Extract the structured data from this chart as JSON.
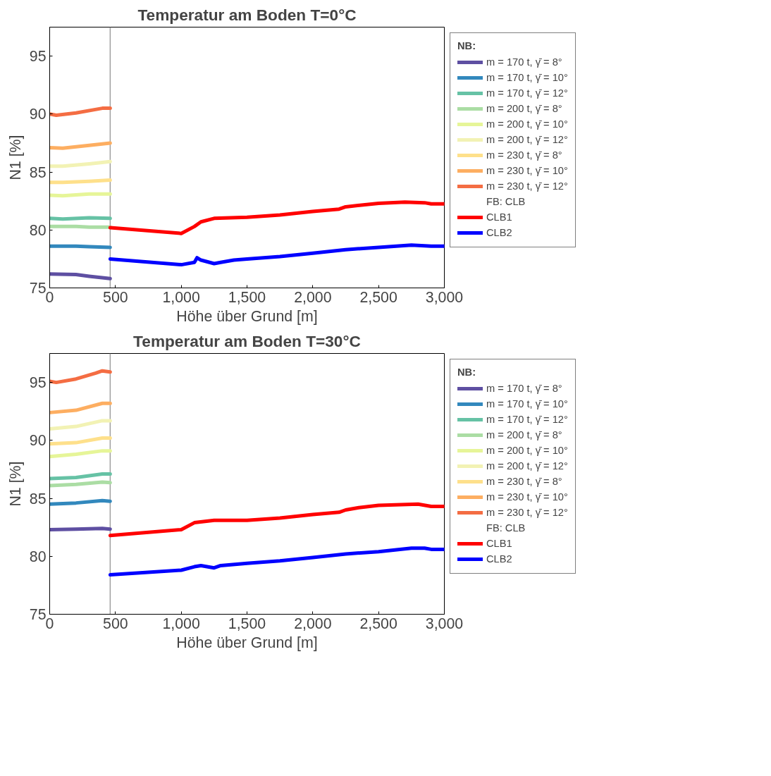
{
  "chart_data": [
    {
      "type": "line",
      "title": "Temperatur am Boden T=0°C",
      "xlabel": "Höhe über Grund [m]",
      "ylabel": "N1 [%]",
      "legend_title": "NB:",
      "annotations": [
        "FB: CLB"
      ],
      "legend": "right",
      "grid": false,
      "xlim": [
        0,
        3000
      ],
      "ylim": [
        75,
        97.5
      ],
      "xticks": [
        0,
        500,
        {
          "value": 1000,
          "label": "1,000"
        },
        {
          "value": 1500,
          "label": "1,500"
        },
        {
          "value": 2000,
          "label": "2,000"
        },
        {
          "value": 2500,
          "label": "2,500"
        },
        {
          "value": 3000,
          "label": "3,000"
        }
      ],
      "yticks": [
        75,
        80,
        85,
        90,
        95
      ],
      "ref_lines": [
        {
          "axis": "x",
          "value": 460,
          "label": null,
          "color": "#a0a0a0"
        }
      ],
      "series": [
        {
          "name": "m = 170 t, γ̄ = 8°",
          "color": "#5e4fa2",
          "x": [
            0,
            200,
            300,
            460
          ],
          "values": [
            76.2,
            76.15,
            76.0,
            75.8
          ]
        },
        {
          "name": "m = 170 t, γ̄ = 10°",
          "color": "#3288bd",
          "x": [
            0,
            200,
            300,
            460
          ],
          "values": [
            78.6,
            78.6,
            78.55,
            78.5
          ]
        },
        {
          "name": "m = 170 t, γ̄ = 12°",
          "color": "#66c2a5",
          "x": [
            0,
            100,
            300,
            460
          ],
          "values": [
            81.0,
            80.95,
            81.05,
            81.0
          ]
        },
        {
          "name": "m = 200 t, γ̄ = 8°",
          "color": "#abdda4",
          "x": [
            0,
            200,
            300,
            460
          ],
          "values": [
            80.3,
            80.3,
            80.25,
            80.25
          ]
        },
        {
          "name": "m = 200 t, γ̄ = 10°",
          "color": "#e6f598",
          "x": [
            0,
            100,
            300,
            460
          ],
          "values": [
            83.0,
            82.95,
            83.1,
            83.1
          ]
        },
        {
          "name": "m = 200 t, γ̄ = 12°",
          "color": "#f2f2b4",
          "x": [
            0,
            100,
            300,
            460
          ],
          "values": [
            85.5,
            85.5,
            85.7,
            85.9
          ]
        },
        {
          "name": "m = 230 t, γ̄ = 8°",
          "color": "#fee08b",
          "x": [
            0,
            100,
            300,
            460
          ],
          "values": [
            84.1,
            84.1,
            84.2,
            84.3
          ]
        },
        {
          "name": "m = 230 t, γ̄ = 10°",
          "color": "#fdae61",
          "x": [
            0,
            100,
            300,
            460
          ],
          "values": [
            87.1,
            87.05,
            87.3,
            87.5
          ]
        },
        {
          "name": "m = 230 t, γ̄ = 12°",
          "color": "#f46d43",
          "x": [
            0,
            50,
            200,
            400,
            460
          ],
          "values": [
            90.0,
            89.9,
            90.1,
            90.5,
            90.5
          ]
        },
        {
          "name": "CLB1",
          "color": "#ff0000",
          "x": [
            460,
            1000,
            1100,
            1150,
            1250,
            1500,
            1750,
            2000,
            2200,
            2250,
            2500,
            2700,
            2850,
            2900,
            3000
          ],
          "values": [
            80.2,
            79.7,
            80.3,
            80.7,
            81.0,
            81.1,
            81.3,
            81.6,
            81.8,
            82.0,
            82.3,
            82.4,
            82.35,
            82.25,
            82.25
          ]
        },
        {
          "name": "CLB2",
          "color": "#0000ff",
          "x": [
            460,
            1000,
            1100,
            1120,
            1150,
            1250,
            1300,
            1400,
            1500,
            1750,
            2000,
            2250,
            2500,
            2750,
            2900,
            3000
          ],
          "values": [
            77.5,
            77.0,
            77.2,
            77.6,
            77.4,
            77.1,
            77.2,
            77.4,
            77.5,
            77.7,
            78.0,
            78.3,
            78.5,
            78.7,
            78.6,
            78.6
          ]
        }
      ]
    },
    {
      "type": "line",
      "title": "Temperatur am Boden T=30°C",
      "xlabel": "Höhe über Grund [m]",
      "ylabel": "N1 [%]",
      "legend_title": "NB:",
      "annotations": [
        "FB: CLB"
      ],
      "legend": "right",
      "grid": false,
      "xlim": [
        0,
        3000
      ],
      "ylim": [
        75,
        97.5
      ],
      "xticks": [
        0,
        500,
        {
          "value": 1000,
          "label": "1,000"
        },
        {
          "value": 1500,
          "label": "1,500"
        },
        {
          "value": 2000,
          "label": "2,000"
        },
        {
          "value": 2500,
          "label": "2,500"
        },
        {
          "value": 3000,
          "label": "3,000"
        }
      ],
      "yticks": [
        75,
        80,
        85,
        90,
        95
      ],
      "ref_lines": [
        {
          "axis": "x",
          "value": 460,
          "label": null,
          "color": "#a0a0a0"
        }
      ],
      "series": [
        {
          "name": "m = 170 t, γ̄ = 8°",
          "color": "#5e4fa2",
          "x": [
            0,
            200,
            400,
            460
          ],
          "values": [
            82.3,
            82.35,
            82.4,
            82.35
          ]
        },
        {
          "name": "m = 170 t, γ̄ = 10°",
          "color": "#3288bd",
          "x": [
            0,
            200,
            400,
            460
          ],
          "values": [
            84.5,
            84.6,
            84.8,
            84.75
          ]
        },
        {
          "name": "m = 170 t, γ̄ = 12°",
          "color": "#66c2a5",
          "x": [
            0,
            200,
            400,
            460
          ],
          "values": [
            86.7,
            86.8,
            87.1,
            87.1
          ]
        },
        {
          "name": "m = 200 t, γ̄ = 8°",
          "color": "#abdda4",
          "x": [
            0,
            200,
            400,
            460
          ],
          "values": [
            86.1,
            86.2,
            86.4,
            86.35
          ]
        },
        {
          "name": "m = 200 t, γ̄ = 10°",
          "color": "#e6f598",
          "x": [
            0,
            200,
            400,
            460
          ],
          "values": [
            88.6,
            88.8,
            89.1,
            89.1
          ]
        },
        {
          "name": "m = 200 t, γ̄ = 12°",
          "color": "#f2f2b4",
          "x": [
            0,
            200,
            400,
            460
          ],
          "values": [
            91.0,
            91.2,
            91.7,
            91.7
          ]
        },
        {
          "name": "m = 230 t, γ̄ = 8°",
          "color": "#fee08b",
          "x": [
            0,
            200,
            400,
            460
          ],
          "values": [
            89.7,
            89.8,
            90.2,
            90.2
          ]
        },
        {
          "name": "m = 230 t, γ̄ = 10°",
          "color": "#fdae61",
          "x": [
            0,
            200,
            400,
            460
          ],
          "values": [
            92.4,
            92.6,
            93.2,
            93.2
          ]
        },
        {
          "name": "m = 230 t, γ̄ = 12°",
          "color": "#f46d43",
          "x": [
            0,
            50,
            200,
            350,
            400,
            460
          ],
          "values": [
            95.1,
            95.0,
            95.3,
            95.8,
            96.0,
            95.9
          ]
        },
        {
          "name": "CLB1",
          "color": "#ff0000",
          "x": [
            460,
            1000,
            1100,
            1250,
            1500,
            1750,
            2000,
            2200,
            2250,
            2350,
            2500,
            2800,
            2900,
            3000
          ],
          "values": [
            81.8,
            82.3,
            82.9,
            83.1,
            83.1,
            83.3,
            83.6,
            83.8,
            84.0,
            84.2,
            84.4,
            84.5,
            84.3,
            84.3
          ]
        },
        {
          "name": "CLB2",
          "color": "#0000ff",
          "x": [
            460,
            1000,
            1100,
            1150,
            1250,
            1300,
            1500,
            1750,
            2000,
            2250,
            2500,
            2750,
            2850,
            2900,
            3000
          ],
          "values": [
            78.4,
            78.8,
            79.1,
            79.2,
            79.0,
            79.2,
            79.4,
            79.6,
            79.9,
            80.2,
            80.4,
            80.7,
            80.7,
            80.6,
            80.6
          ]
        }
      ]
    }
  ]
}
